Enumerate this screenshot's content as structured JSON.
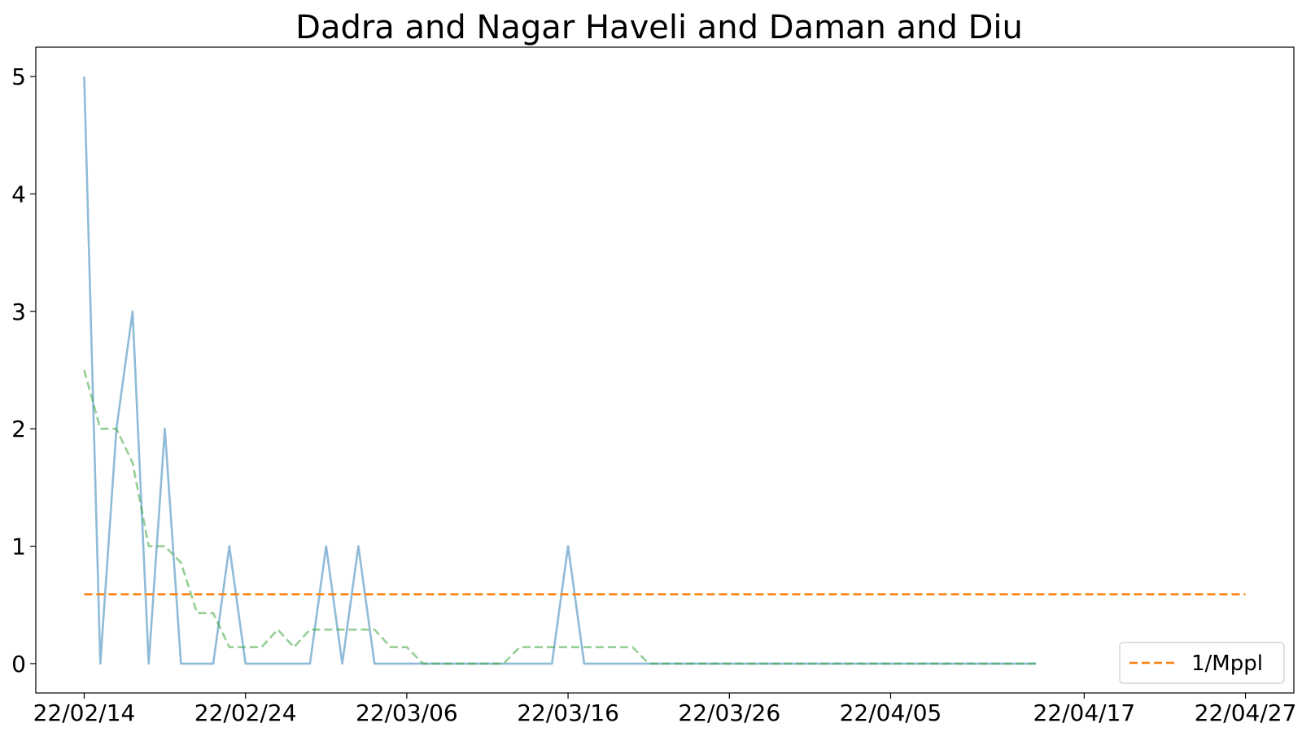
{
  "chart_data": {
    "type": "line",
    "title": "Dadra and Nagar Haveli and Daman and Diu",
    "xlabel": "",
    "ylabel": "",
    "x_axis": {
      "type": "date",
      "range": [
        "2022-02-11",
        "2022-04-30"
      ],
      "ticks": [
        {
          "date": "2022-02-14",
          "label": "22/02/14"
        },
        {
          "date": "2022-02-24",
          "label": "22/02/24"
        },
        {
          "date": "2022-03-06",
          "label": "22/03/06"
        },
        {
          "date": "2022-03-16",
          "label": "22/03/16"
        },
        {
          "date": "2022-03-26",
          "label": "22/03/26"
        },
        {
          "date": "2022-04-05",
          "label": "22/04/05"
        },
        {
          "date": "2022-04-17",
          "label": "22/04/17"
        },
        {
          "date": "2022-04-27",
          "label": "22/04/27"
        }
      ]
    },
    "y_axis": {
      "range": [
        -0.25,
        5.25
      ],
      "ticks": [
        0,
        1,
        2,
        3,
        4,
        5
      ]
    },
    "grid": false,
    "legend": {
      "placement": "lower-right",
      "entries": [
        {
          "label": "1/Mppl",
          "color": "#ff7f0e",
          "style": "dashed"
        }
      ]
    },
    "series": [
      {
        "color": "#1f77b4",
        "style": "solid",
        "opacity": 0.5,
        "points": [
          [
            "2022-02-14",
            5
          ],
          [
            "2022-02-15",
            0
          ],
          [
            "2022-02-16",
            2
          ],
          [
            "2022-02-17",
            3
          ],
          [
            "2022-02-18",
            0
          ],
          [
            "2022-02-19",
            2
          ],
          [
            "2022-02-20",
            0
          ],
          [
            "2022-02-21",
            0
          ],
          [
            "2022-02-22",
            0
          ],
          [
            "2022-02-23",
            1
          ],
          [
            "2022-02-24",
            0
          ],
          [
            "2022-02-25",
            0
          ],
          [
            "2022-02-26",
            0
          ],
          [
            "2022-02-27",
            0
          ],
          [
            "2022-02-28",
            0
          ],
          [
            "2022-03-01",
            1
          ],
          [
            "2022-03-02",
            0
          ],
          [
            "2022-03-03",
            1
          ],
          [
            "2022-03-04",
            0
          ],
          [
            "2022-03-05",
            0
          ],
          [
            "2022-03-06",
            0
          ],
          [
            "2022-03-07",
            0
          ],
          [
            "2022-03-08",
            0
          ],
          [
            "2022-03-09",
            0
          ],
          [
            "2022-03-10",
            0
          ],
          [
            "2022-03-11",
            0
          ],
          [
            "2022-03-12",
            0
          ],
          [
            "2022-03-13",
            0
          ],
          [
            "2022-03-14",
            0
          ],
          [
            "2022-03-15",
            0
          ],
          [
            "2022-03-16",
            1
          ],
          [
            "2022-03-17",
            0
          ],
          [
            "2022-03-18",
            0
          ],
          [
            "2022-03-19",
            0
          ],
          [
            "2022-03-20",
            0
          ],
          [
            "2022-03-21",
            0
          ],
          [
            "2022-03-22",
            0
          ],
          [
            "2022-03-23",
            0
          ],
          [
            "2022-03-24",
            0
          ],
          [
            "2022-03-25",
            0
          ],
          [
            "2022-03-26",
            0
          ],
          [
            "2022-03-27",
            0
          ],
          [
            "2022-03-28",
            0
          ],
          [
            "2022-03-29",
            0
          ],
          [
            "2022-03-30",
            0
          ],
          [
            "2022-03-31",
            0
          ],
          [
            "2022-04-01",
            0
          ],
          [
            "2022-04-02",
            0
          ],
          [
            "2022-04-03",
            0
          ],
          [
            "2022-04-04",
            0
          ],
          [
            "2022-04-05",
            0
          ],
          [
            "2022-04-06",
            0
          ],
          [
            "2022-04-07",
            0
          ],
          [
            "2022-04-08",
            0
          ],
          [
            "2022-04-09",
            0
          ],
          [
            "2022-04-10",
            0
          ],
          [
            "2022-04-11",
            0
          ],
          [
            "2022-04-12",
            0
          ],
          [
            "2022-04-13",
            0
          ],
          [
            "2022-04-14",
            0
          ]
        ]
      },
      {
        "color": "#2ca02c",
        "style": "dashed",
        "opacity": 0.5,
        "points": [
          [
            "2022-02-14",
            2.5
          ],
          [
            "2022-02-15",
            2.0
          ],
          [
            "2022-02-16",
            2.0
          ],
          [
            "2022-02-17",
            1.71
          ],
          [
            "2022-02-18",
            1.0
          ],
          [
            "2022-02-19",
            1.0
          ],
          [
            "2022-02-20",
            0.86
          ],
          [
            "2022-02-21",
            0.43
          ],
          [
            "2022-02-22",
            0.43
          ],
          [
            "2022-02-23",
            0.14
          ],
          [
            "2022-02-24",
            0.14
          ],
          [
            "2022-02-25",
            0.14
          ],
          [
            "2022-02-26",
            0.29
          ],
          [
            "2022-02-27",
            0.14
          ],
          [
            "2022-02-28",
            0.29
          ],
          [
            "2022-03-01",
            0.29
          ],
          [
            "2022-03-02",
            0.29
          ],
          [
            "2022-03-03",
            0.29
          ],
          [
            "2022-03-04",
            0.29
          ],
          [
            "2022-03-05",
            0.14
          ],
          [
            "2022-03-06",
            0.14
          ],
          [
            "2022-03-07",
            0
          ],
          [
            "2022-03-08",
            0
          ],
          [
            "2022-03-09",
            0
          ],
          [
            "2022-03-10",
            0
          ],
          [
            "2022-03-11",
            0
          ],
          [
            "2022-03-12",
            0
          ],
          [
            "2022-03-13",
            0.14
          ],
          [
            "2022-03-14",
            0.14
          ],
          [
            "2022-03-15",
            0.14
          ],
          [
            "2022-03-16",
            0.14
          ],
          [
            "2022-03-17",
            0.14
          ],
          [
            "2022-03-18",
            0.14
          ],
          [
            "2022-03-19",
            0.14
          ],
          [
            "2022-03-20",
            0.14
          ],
          [
            "2022-03-21",
            0
          ],
          [
            "2022-03-22",
            0
          ],
          [
            "2022-03-23",
            0
          ],
          [
            "2022-03-24",
            0
          ],
          [
            "2022-03-25",
            0
          ],
          [
            "2022-03-26",
            0
          ],
          [
            "2022-03-27",
            0
          ],
          [
            "2022-03-28",
            0
          ],
          [
            "2022-03-29",
            0
          ],
          [
            "2022-03-30",
            0
          ],
          [
            "2022-03-31",
            0
          ],
          [
            "2022-04-01",
            0
          ],
          [
            "2022-04-02",
            0
          ],
          [
            "2022-04-03",
            0
          ],
          [
            "2022-04-04",
            0
          ],
          [
            "2022-04-05",
            0
          ],
          [
            "2022-04-06",
            0
          ],
          [
            "2022-04-07",
            0
          ],
          [
            "2022-04-08",
            0
          ],
          [
            "2022-04-09",
            0
          ],
          [
            "2022-04-10",
            0
          ],
          [
            "2022-04-11",
            0
          ],
          [
            "2022-04-12",
            0
          ],
          [
            "2022-04-13",
            0
          ],
          [
            "2022-04-14",
            0
          ]
        ]
      },
      {
        "name": "1/Mppl",
        "color": "#ff7f0e",
        "style": "dashed",
        "opacity": 1.0,
        "points": [
          [
            "2022-02-14",
            0.59
          ],
          [
            "2022-04-27",
            0.59
          ]
        ]
      }
    ]
  }
}
